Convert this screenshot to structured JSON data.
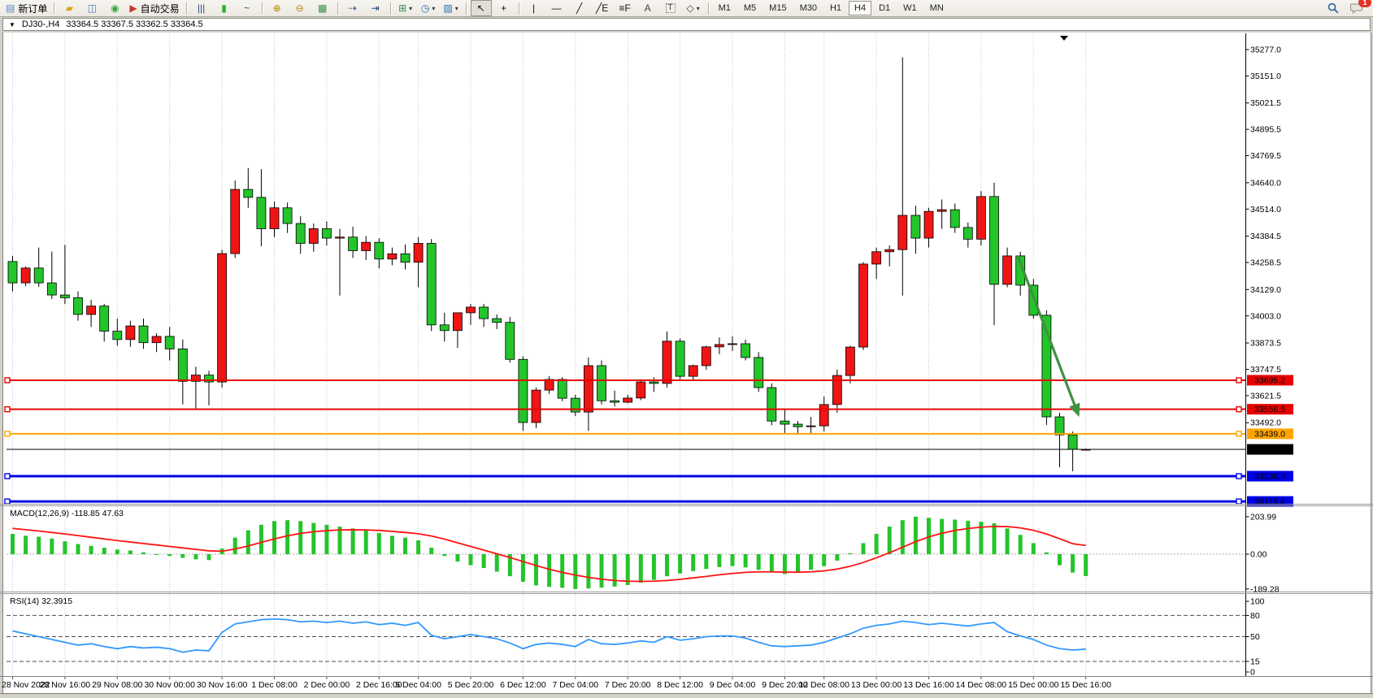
{
  "toolbar": {
    "notification_count": "1",
    "items": [
      {
        "type": "button",
        "name": "new-order-button",
        "icon": "new-order-icon",
        "glyph": "▤",
        "glyph_color": "#5b87c5",
        "label": "新订单"
      },
      {
        "type": "sep"
      },
      {
        "type": "icon",
        "name": "history-center-button",
        "icon": "history-center-icon",
        "glyph": "▰",
        "glyph_color": "#d9a417"
      },
      {
        "type": "icon",
        "name": "profiles-button",
        "icon": "profiles-icon",
        "glyph": "◫",
        "glyph_color": "#4a78c2"
      },
      {
        "type": "icon",
        "name": "signals-button",
        "icon": "signals-icon",
        "glyph": "◉",
        "glyph_color": "#3aa53a"
      },
      {
        "type": "button",
        "name": "auto-trading-button",
        "icon": "auto-trading-icon",
        "glyph": "▶",
        "glyph_color": "#c23b2e",
        "label": "自动交易"
      },
      {
        "type": "sep"
      },
      {
        "type": "icon",
        "name": "bar-chart-button",
        "icon": "bar-chart-icon",
        "glyph": "|||",
        "glyph_color": "#23487d"
      },
      {
        "type": "icon",
        "name": "candlestick-chart-button",
        "icon": "candlestick-icon",
        "glyph": "▮",
        "glyph_color": "#27b32a"
      },
      {
        "type": "icon",
        "name": "line-chart-button",
        "icon": "line-chart-icon",
        "glyph": "~",
        "glyph_color": "#23487d"
      },
      {
        "type": "sep"
      },
      {
        "type": "icon",
        "name": "zoom-in-button",
        "icon": "zoom-in-icon",
        "glyph": "⊕",
        "glyph_color": "#b8860b"
      },
      {
        "type": "icon",
        "name": "zoom-out-button",
        "icon": "zoom-out-icon",
        "glyph": "⊖",
        "glyph_color": "#b8860b"
      },
      {
        "type": "icon",
        "name": "tile-windows-button",
        "icon": "tile-windows-icon",
        "glyph": "▦",
        "glyph_color": "#2f8f4f"
      },
      {
        "type": "sep"
      },
      {
        "type": "icon",
        "name": "autoscroll-button",
        "icon": "autoscroll-icon",
        "glyph": "⇢",
        "glyph_color": "#23487d"
      },
      {
        "type": "icon",
        "name": "chart-shift-button",
        "icon": "chart-shift-icon",
        "glyph": "⇥",
        "glyph_color": "#23487d"
      },
      {
        "type": "sep"
      },
      {
        "type": "icon",
        "name": "indicators-button",
        "icon": "indicators-icon",
        "glyph": "⊞",
        "glyph_color": "#2f8f4f",
        "dropdown": true
      },
      {
        "type": "icon",
        "name": "periods-button",
        "icon": "clock-icon",
        "glyph": "◷",
        "glyph_color": "#2b6cb0",
        "dropdown": true
      },
      {
        "type": "icon",
        "name": "templates-button",
        "icon": "templates-icon",
        "glyph": "▨",
        "glyph_color": "#2b6cb0",
        "dropdown": true
      },
      {
        "type": "sep"
      },
      {
        "type": "icon",
        "name": "cursor-button",
        "icon": "cursor-icon",
        "glyph": "↖",
        "glyph_color": "#111",
        "pressed": true
      },
      {
        "type": "icon",
        "name": "crosshair-button",
        "icon": "crosshair-icon",
        "glyph": "+",
        "glyph_color": "#111"
      },
      {
        "type": "sep"
      },
      {
        "type": "icon",
        "name": "vertical-line-button",
        "icon": "vertical-line-icon",
        "glyph": "|",
        "glyph_color": "#111"
      },
      {
        "type": "icon",
        "name": "horizontal-line-button",
        "icon": "horizontal-line-icon",
        "glyph": "—",
        "glyph_color": "#111"
      },
      {
        "type": "icon",
        "name": "trendline-button",
        "icon": "trendline-icon",
        "glyph": "╱",
        "glyph_color": "#111"
      },
      {
        "type": "icon",
        "name": "equidistant-channel-button",
        "icon": "channel-icon",
        "glyph": "╱E",
        "glyph_color": "#111"
      },
      {
        "type": "icon",
        "name": "fibonacci-button",
        "icon": "fibonacci-icon",
        "glyph": "≡F",
        "glyph_color": "#111"
      },
      {
        "type": "icon",
        "name": "text-button",
        "icon": "text-icon",
        "glyph": "A",
        "glyph_color": "#444"
      },
      {
        "type": "icon",
        "name": "text-label-button",
        "icon": "text-label-icon",
        "glyph": "T",
        "glyph_color": "#444",
        "boxed": true
      },
      {
        "type": "icon",
        "name": "shapes-button",
        "icon": "shapes-icon",
        "glyph": "◇",
        "glyph_color": "#444",
        "dropdown": true
      },
      {
        "type": "sep"
      },
      {
        "type": "tf",
        "label": "M1"
      },
      {
        "type": "tf",
        "label": "M5"
      },
      {
        "type": "tf",
        "label": "M15"
      },
      {
        "type": "tf",
        "label": "M30"
      },
      {
        "type": "tf",
        "label": "H1"
      },
      {
        "type": "tf",
        "label": "H4",
        "active": true
      },
      {
        "type": "tf",
        "label": "D1"
      },
      {
        "type": "tf",
        "label": "W1"
      },
      {
        "type": "tf",
        "label": "MN"
      },
      {
        "type": "spacer"
      },
      {
        "type": "search",
        "name": "search-button",
        "icon": "search-icon"
      },
      {
        "type": "chat",
        "name": "notifications-button",
        "icon": "chat-bubble-icon"
      }
    ]
  },
  "chart_header": {
    "dropdown_glyph": "▼",
    "symbol_period": "DJ30-,H4",
    "ohlc": "33364.5 33367.5 33362.5 33364.5"
  },
  "chart_data": {
    "type": "candlestick+indicators",
    "symbol": "DJ30-",
    "period": "H4",
    "convention": "red=bullish, green=bearish",
    "colors": {
      "up": "#ef1515",
      "down": "#23c52a",
      "outline": "#000000",
      "grid": "#c6c6c6",
      "arrow": "#3f9140"
    },
    "price_axis_ticks": [
      "35277.0",
      "35151.0",
      "35021.5",
      "34895.5",
      "34769.5",
      "34640.0",
      "34514.0",
      "34384.5",
      "34258.5",
      "34129.0",
      "34003.0",
      "33873.5",
      "33747.5",
      "33621.5",
      "33492.0"
    ],
    "horizontal_lines": [
      {
        "price": 33695.2,
        "label": "33695.2",
        "color": "#e60400",
        "width": 2
      },
      {
        "price": 33556.5,
        "label": "33556.5",
        "color": "#e60400",
        "width": 2
      },
      {
        "price": 33439.0,
        "label": "33439.0",
        "color": "#ffa400",
        "width": 2
      },
      {
        "price": 33364.5,
        "label": "33364.5",
        "color": "#000000",
        "width": 1,
        "current": true
      },
      {
        "price": 33236.3,
        "label": "33236.3",
        "color": "#0000e6",
        "width": 3
      },
      {
        "price": 33115.4,
        "label": "33115.4",
        "color": "#0000e6",
        "width": 3
      }
    ],
    "candles": [
      [
        34263,
        34290,
        34120,
        34161
      ],
      [
        34161,
        34240,
        34146,
        34232
      ],
      [
        34232,
        34330,
        34142,
        34161
      ],
      [
        34161,
        34311,
        34084,
        34103
      ],
      [
        34103,
        34343,
        34060,
        34090
      ],
      [
        34090,
        34120,
        33980,
        34010
      ],
      [
        34010,
        34080,
        33950,
        34050
      ],
      [
        34050,
        34060,
        33880,
        33930
      ],
      [
        33930,
        33990,
        33860,
        33890
      ],
      [
        33890,
        33980,
        33855,
        33955
      ],
      [
        33955,
        33990,
        33845,
        33875
      ],
      [
        33875,
        33920,
        33830,
        33905
      ],
      [
        33905,
        33950,
        33790,
        33845
      ],
      [
        33845,
        33890,
        33580,
        33690
      ],
      [
        33690,
        33760,
        33560,
        33720
      ],
      [
        33720,
        33740,
        33575,
        33687
      ],
      [
        33687,
        34320,
        33660,
        34301
      ],
      [
        34301,
        34651,
        34280,
        34608
      ],
      [
        34608,
        34710,
        34520,
        34570
      ],
      [
        34570,
        34705,
        34336,
        34420
      ],
      [
        34420,
        34550,
        34380,
        34520
      ],
      [
        34520,
        34545,
        34400,
        34445
      ],
      [
        34445,
        34480,
        34300,
        34350
      ],
      [
        34350,
        34445,
        34310,
        34420
      ],
      [
        34420,
        34455,
        34340,
        34375
      ],
      [
        34375,
        34420,
        34100,
        34380
      ],
      [
        34380,
        34430,
        34280,
        34315
      ],
      [
        34315,
        34385,
        34270,
        34355
      ],
      [
        34355,
        34375,
        34230,
        34275
      ],
      [
        34275,
        34330,
        34245,
        34300
      ],
      [
        34300,
        34345,
        34225,
        34260
      ],
      [
        34260,
        34380,
        34140,
        34350
      ],
      [
        34350,
        34371,
        33930,
        33960
      ],
      [
        33960,
        34018,
        33880,
        33933
      ],
      [
        33933,
        34018,
        33850,
        34018
      ],
      [
        34018,
        34060,
        33960,
        34045
      ],
      [
        34045,
        34060,
        33950,
        33990
      ],
      [
        33990,
        34010,
        33940,
        33972
      ],
      [
        33972,
        33998,
        33780,
        33795
      ],
      [
        33795,
        33810,
        33453,
        33493
      ],
      [
        33493,
        33660,
        33466,
        33648
      ],
      [
        33648,
        33715,
        33630,
        33699
      ],
      [
        33699,
        33710,
        33595,
        33609
      ],
      [
        33609,
        33625,
        33524,
        33543
      ],
      [
        33543,
        33804,
        33453,
        33765
      ],
      [
        33765,
        33790,
        33580,
        33597
      ],
      [
        33597,
        33645,
        33570,
        33590
      ],
      [
        33590,
        33625,
        33585,
        33610
      ],
      [
        33610,
        33700,
        33600,
        33687
      ],
      [
        33687,
        33710,
        33640,
        33680
      ],
      [
        33680,
        33928,
        33660,
        33882
      ],
      [
        33882,
        33895,
        33700,
        33714
      ],
      [
        33714,
        33770,
        33695,
        33765
      ],
      [
        33765,
        33860,
        33745,
        33855
      ],
      [
        33855,
        33900,
        33820,
        33866
      ],
      [
        33866,
        33905,
        33835,
        33870
      ],
      [
        33870,
        33890,
        33790,
        33804
      ],
      [
        33804,
        33830,
        33640,
        33660
      ],
      [
        33660,
        33680,
        33480,
        33500
      ],
      [
        33500,
        33560,
        33442,
        33485
      ],
      [
        33485,
        33500,
        33435,
        33473
      ],
      [
        33473,
        33520,
        33440,
        33477
      ],
      [
        33477,
        33618,
        33450,
        33579
      ],
      [
        33579,
        33746,
        33540,
        33718
      ],
      [
        33718,
        33860,
        33680,
        33854
      ],
      [
        33854,
        34260,
        33840,
        34251
      ],
      [
        34251,
        34330,
        34180,
        34310
      ],
      [
        34310,
        34340,
        34240,
        34320
      ],
      [
        34320,
        35240,
        34100,
        34484
      ],
      [
        34484,
        34530,
        34300,
        34375
      ],
      [
        34375,
        34520,
        34330,
        34503
      ],
      [
        34503,
        34560,
        34420,
        34511
      ],
      [
        34511,
        34540,
        34400,
        34426
      ],
      [
        34426,
        34450,
        34330,
        34370
      ],
      [
        34370,
        34600,
        34340,
        34574
      ],
      [
        34574,
        34640,
        33959,
        34154
      ],
      [
        34154,
        34330,
        34140,
        34290
      ],
      [
        34290,
        34310,
        34100,
        34150
      ],
      [
        34150,
        34180,
        33990,
        34006
      ],
      [
        34006,
        34030,
        33481,
        33520
      ],
      [
        33520,
        33540,
        33279,
        33434
      ],
      [
        33434,
        33450,
        33260,
        33364.5
      ],
      [
        33364.5,
        33367.5,
        33362.5,
        33364.5
      ]
    ],
    "time_axis": [
      [
        0,
        "28 Nov 2022"
      ],
      [
        4,
        "28 Nov 16:00"
      ],
      [
        8,
        "29 Nov 08:00"
      ],
      [
        12,
        "30 Nov 00:00"
      ],
      [
        16,
        "30 Nov 16:00"
      ],
      [
        20,
        "1 Dec 08:00"
      ],
      [
        24,
        "2 Dec 00:00"
      ],
      [
        28,
        "2 Dec 16:00"
      ],
      [
        31,
        "5 Dec 04:00"
      ],
      [
        35,
        "5 Dec 20:00"
      ],
      [
        39,
        "6 Dec 12:00"
      ],
      [
        43,
        "7 Dec 04:00"
      ],
      [
        47,
        "7 Dec 20:00"
      ],
      [
        51,
        "8 Dec 12:00"
      ],
      [
        55,
        "9 Dec 04:00"
      ],
      [
        59,
        "9 Dec 20:00"
      ],
      [
        62,
        "12 Dec 08:00"
      ],
      [
        66,
        "13 Dec 00:00"
      ],
      [
        70,
        "13 Dec 16:00"
      ],
      [
        74,
        "14 Dec 08:00"
      ],
      [
        78,
        "15 Dec 00:00"
      ],
      [
        82,
        "15 Dec 16:00"
      ]
    ],
    "arrow": {
      "from_index": 76.8,
      "from_price": 34290,
      "to_index": 81.8,
      "to_price": 33500,
      "color": "#3f9140"
    },
    "macd": {
      "label": "MACD(12,26,9)",
      "value_text": "-118.85 47.63",
      "axis": [
        "203.99",
        "0.00",
        "-189.28"
      ],
      "hist_color": "#23c52a",
      "signal_color": "#ff1414",
      "histogram": [
        110,
        100,
        95,
        85,
        70,
        55,
        45,
        35,
        25,
        20,
        10,
        0,
        -10,
        -20,
        -28,
        -32,
        30,
        90,
        130,
        160,
        180,
        185,
        180,
        170,
        160,
        150,
        140,
        130,
        115,
        100,
        90,
        75,
        35,
        -10,
        -40,
        -60,
        -75,
        -95,
        -120,
        -150,
        -170,
        -178,
        -183,
        -189.28,
        -186,
        -182,
        -176,
        -168,
        -155,
        -140,
        -120,
        -105,
        -92,
        -80,
        -70,
        -65,
        -72,
        -85,
        -100,
        -108,
        -100,
        -85,
        -65,
        -35,
        5,
        60,
        110,
        150,
        185,
        203.99,
        198,
        192,
        188,
        182,
        176,
        168,
        140,
        105,
        60,
        10,
        -60,
        -100,
        -118.85
      ],
      "signal": [
        140,
        133,
        126,
        118,
        110,
        101,
        92,
        83,
        74,
        66,
        58,
        50,
        42,
        34,
        26,
        18,
        16,
        28,
        45,
        64,
        83,
        100,
        113,
        122,
        128,
        132,
        133,
        132,
        129,
        124,
        118,
        111,
        99,
        82,
        62,
        42,
        22,
        2,
        -18,
        -40,
        -62,
        -82,
        -99,
        -114,
        -126,
        -136,
        -143,
        -147,
        -148,
        -147,
        -143,
        -137,
        -129,
        -121,
        -112,
        -105,
        -99,
        -96,
        -96,
        -98,
        -98,
        -96,
        -91,
        -81,
        -66,
        -45,
        -20,
        8,
        38,
        68,
        94,
        114,
        129,
        140,
        147,
        151,
        150,
        143,
        130,
        110,
        84,
        57,
        47.63
      ]
    },
    "rsi": {
      "label": "RSI(14)",
      "value_text": "32.3915",
      "axis": [
        "100",
        "80",
        "50",
        "15",
        "0"
      ],
      "levels": [
        80,
        50,
        15
      ],
      "color": "#3399ff",
      "values": [
        58,
        54,
        50,
        46,
        42,
        38,
        40,
        36,
        33,
        36,
        34,
        35,
        33,
        28,
        31,
        30,
        56,
        68,
        71,
        74,
        75,
        74,
        71,
        72,
        70,
        72,
        69,
        71,
        67,
        69,
        66,
        70,
        52,
        47,
        50,
        53,
        50,
        47,
        41,
        33,
        39,
        41,
        39,
        36,
        46,
        40,
        39,
        41,
        44,
        42,
        50,
        45,
        47,
        50,
        51,
        51,
        48,
        42,
        37,
        36,
        37,
        38,
        42,
        48,
        54,
        62,
        66,
        68,
        72,
        70,
        67,
        69,
        67,
        65,
        68,
        70,
        57,
        51,
        46,
        38,
        33,
        31,
        32.39
      ]
    }
  }
}
